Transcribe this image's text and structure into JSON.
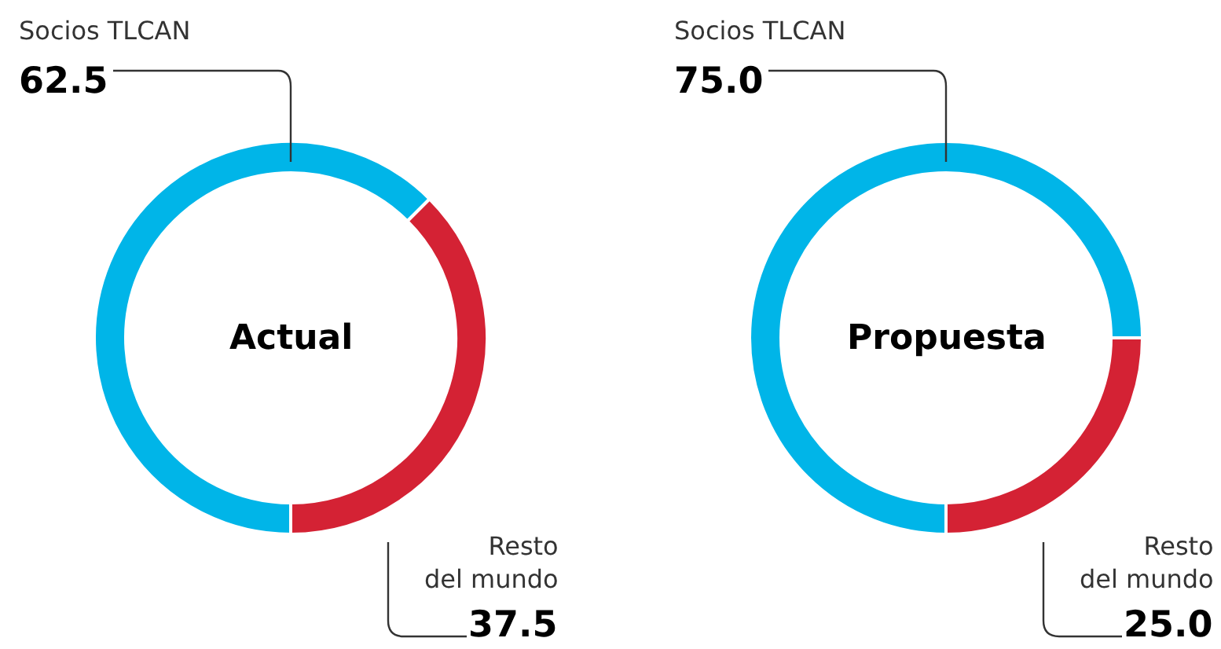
{
  "chart_data": [
    {
      "type": "donut",
      "title": "Actual",
      "categories": [
        "Socios TLCAN",
        "Resto del mundo"
      ],
      "values": [
        62.5,
        37.5
      ],
      "value_labels": [
        "62.5",
        "37.5"
      ],
      "colors": [
        "#00b5e8",
        "#d42234"
      ]
    },
    {
      "type": "donut",
      "title": "Propuesta",
      "categories": [
        "Socios TLCAN",
        "Resto del mundo"
      ],
      "values": [
        75.0,
        25.0
      ],
      "value_labels": [
        "75.0",
        "25.0"
      ],
      "colors": [
        "#00b5e8",
        "#d42234"
      ]
    }
  ]
}
